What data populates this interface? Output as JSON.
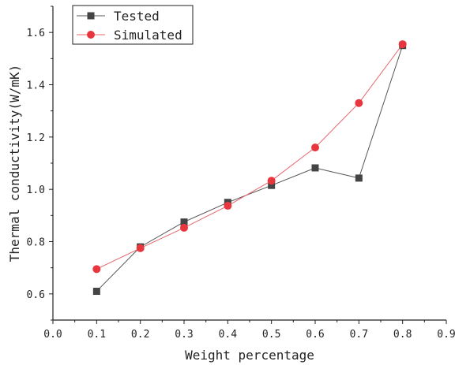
{
  "chart_data": {
    "type": "line",
    "xlabel": "Weight percentage",
    "ylabel": "Thermal conductivity(W/mK)",
    "xlim": [
      0.0,
      0.9
    ],
    "ylim": [
      0.5,
      1.7
    ],
    "x_ticks": [
      "0.0",
      "0.1",
      "0.2",
      "0.3",
      "0.4",
      "0.5",
      "0.6",
      "0.7",
      "0.8",
      "0.9"
    ],
    "y_ticks": [
      "0.6",
      "0.8",
      "1.0",
      "1.2",
      "1.4",
      "1.6"
    ],
    "grid": false,
    "legend_position": "top-left",
    "x": [
      0.1,
      0.2,
      0.3,
      0.4,
      0.5,
      0.6,
      0.7,
      0.8
    ],
    "series": [
      {
        "name": "Tested",
        "color": "#444444",
        "marker": "square",
        "values": [
          0.61,
          0.78,
          0.875,
          0.95,
          1.015,
          1.082,
          1.043,
          1.55
        ]
      },
      {
        "name": "Simulated",
        "color": "#e8363f",
        "marker": "circle",
        "values": [
          0.695,
          0.775,
          0.853,
          0.937,
          1.033,
          1.16,
          1.33,
          1.555
        ]
      }
    ]
  }
}
